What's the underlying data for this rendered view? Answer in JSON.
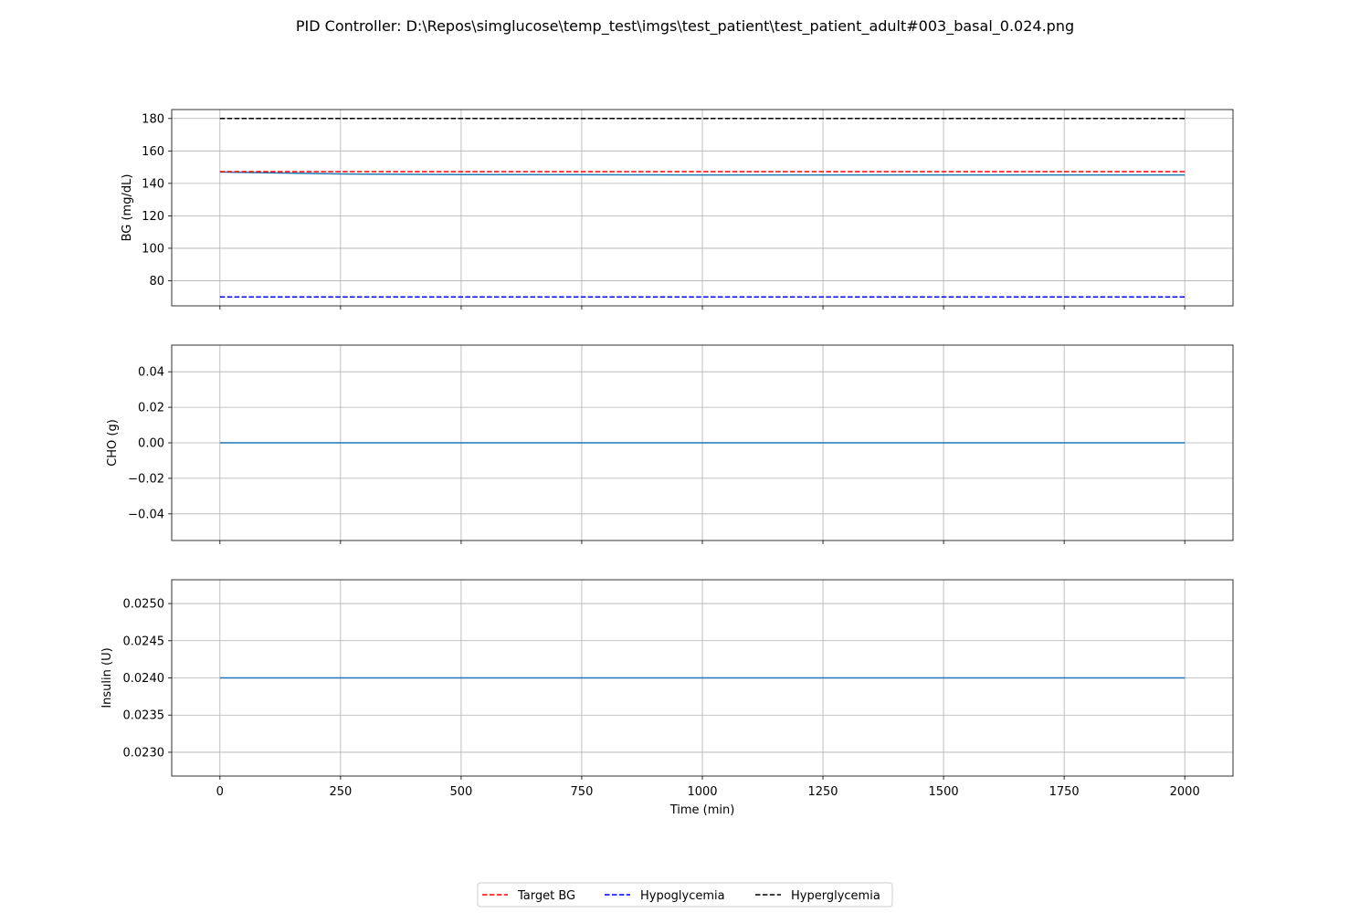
{
  "chart_data": {
    "title": "PID Controller: D:\\Repos\\simglucose\\temp_test\\imgs\\test_patient\\test_patient_adult#003_basal_0.024.png",
    "xlabel": "Time (min)",
    "xlim": [
      -100,
      2100
    ],
    "xticks": [
      0,
      250,
      500,
      750,
      1000,
      1250,
      1500,
      1750,
      2000
    ],
    "xtick_labels": [
      "0",
      "250",
      "500",
      "750",
      "1000",
      "1250",
      "1500",
      "1750",
      "2000"
    ],
    "grid": true,
    "legend": {
      "placement": "bottom-center",
      "entries": [
        {
          "label": "Target BG",
          "color": "#ff0000",
          "style": "dashed"
        },
        {
          "label": "Hypoglycemia",
          "color": "#0000ff",
          "style": "dashed"
        },
        {
          "label": "Hyperglycemia",
          "color": "#000000",
          "style": "dashed"
        }
      ]
    },
    "panels": [
      {
        "type": "line",
        "ylabel": "BG (mg/dL)",
        "ylim": [
          64.5,
          185.5
        ],
        "yticks": [
          80,
          100,
          120,
          140,
          160,
          180
        ],
        "ytick_labels": [
          "80",
          "100",
          "120",
          "140",
          "160",
          "180"
        ],
        "series": [
          {
            "color": "#1f77b4",
            "style": "solid",
            "x": [
              0,
              100,
              250,
              500,
              1000,
              2000
            ],
            "y": [
              147,
              146.5,
              145.8,
              145.4,
              145.2,
              145.2
            ]
          },
          {
            "name": "Target BG",
            "color": "#ff0000",
            "style": "dashed",
            "x": [
              0,
              2000
            ],
            "y": [
              147.2,
              147.2
            ]
          },
          {
            "name": "Hypoglycemia",
            "color": "#0000ff",
            "style": "dashed",
            "x": [
              0,
              2000
            ],
            "y": [
              70,
              70
            ]
          },
          {
            "name": "Hyperglycemia",
            "color": "#000000",
            "style": "dashed",
            "x": [
              0,
              2000
            ],
            "y": [
              180,
              180
            ]
          }
        ]
      },
      {
        "type": "line",
        "ylabel": "CHO (g)",
        "ylim": [
          -0.055,
          0.055
        ],
        "yticks": [
          -0.04,
          -0.02,
          0.0,
          0.02,
          0.04
        ],
        "ytick_labels": [
          "−0.04",
          "−0.02",
          "0.00",
          "0.02",
          "0.04"
        ],
        "series": [
          {
            "color": "#1f77b4",
            "style": "solid",
            "x": [
              0,
              2000
            ],
            "y": [
              0,
              0
            ]
          }
        ]
      },
      {
        "type": "line",
        "ylabel": "Insulin (U)",
        "ylim": [
          0.02268,
          0.02532
        ],
        "yticks": [
          0.023,
          0.0235,
          0.024,
          0.0245,
          0.025
        ],
        "ytick_labels": [
          "0.0230",
          "0.0235",
          "0.0240",
          "0.0245",
          "0.0250"
        ],
        "series": [
          {
            "color": "#1f77b4",
            "style": "solid",
            "x": [
              0,
              2000
            ],
            "y": [
              0.024,
              0.024
            ]
          }
        ]
      }
    ]
  }
}
